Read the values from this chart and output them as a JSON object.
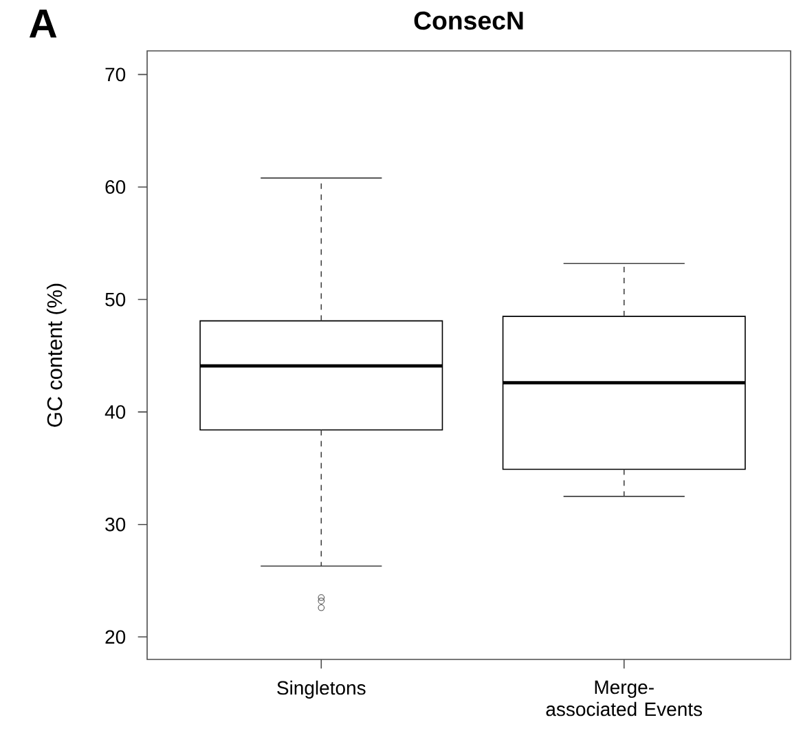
{
  "chart_data": {
    "type": "box",
    "title": "ConsecN",
    "ylabel": "GC content (%)",
    "categories": [
      "Singletons",
      "Merge-associated Events"
    ],
    "boxes": [
      {
        "low": 26.3,
        "q1": 38.4,
        "median": 44.1,
        "q3": 48.1,
        "high": 60.8,
        "outliers": [
          23.5,
          23.2,
          22.6
        ]
      },
      {
        "low": 32.5,
        "q1": 34.9,
        "median": 42.6,
        "q3": 48.5,
        "high": 53.2
      }
    ],
    "ylim": [
      18,
      72.1
    ],
    "yticks": [
      20,
      30,
      40,
      50,
      60,
      70
    ],
    "annotations": [
      "A"
    ]
  }
}
